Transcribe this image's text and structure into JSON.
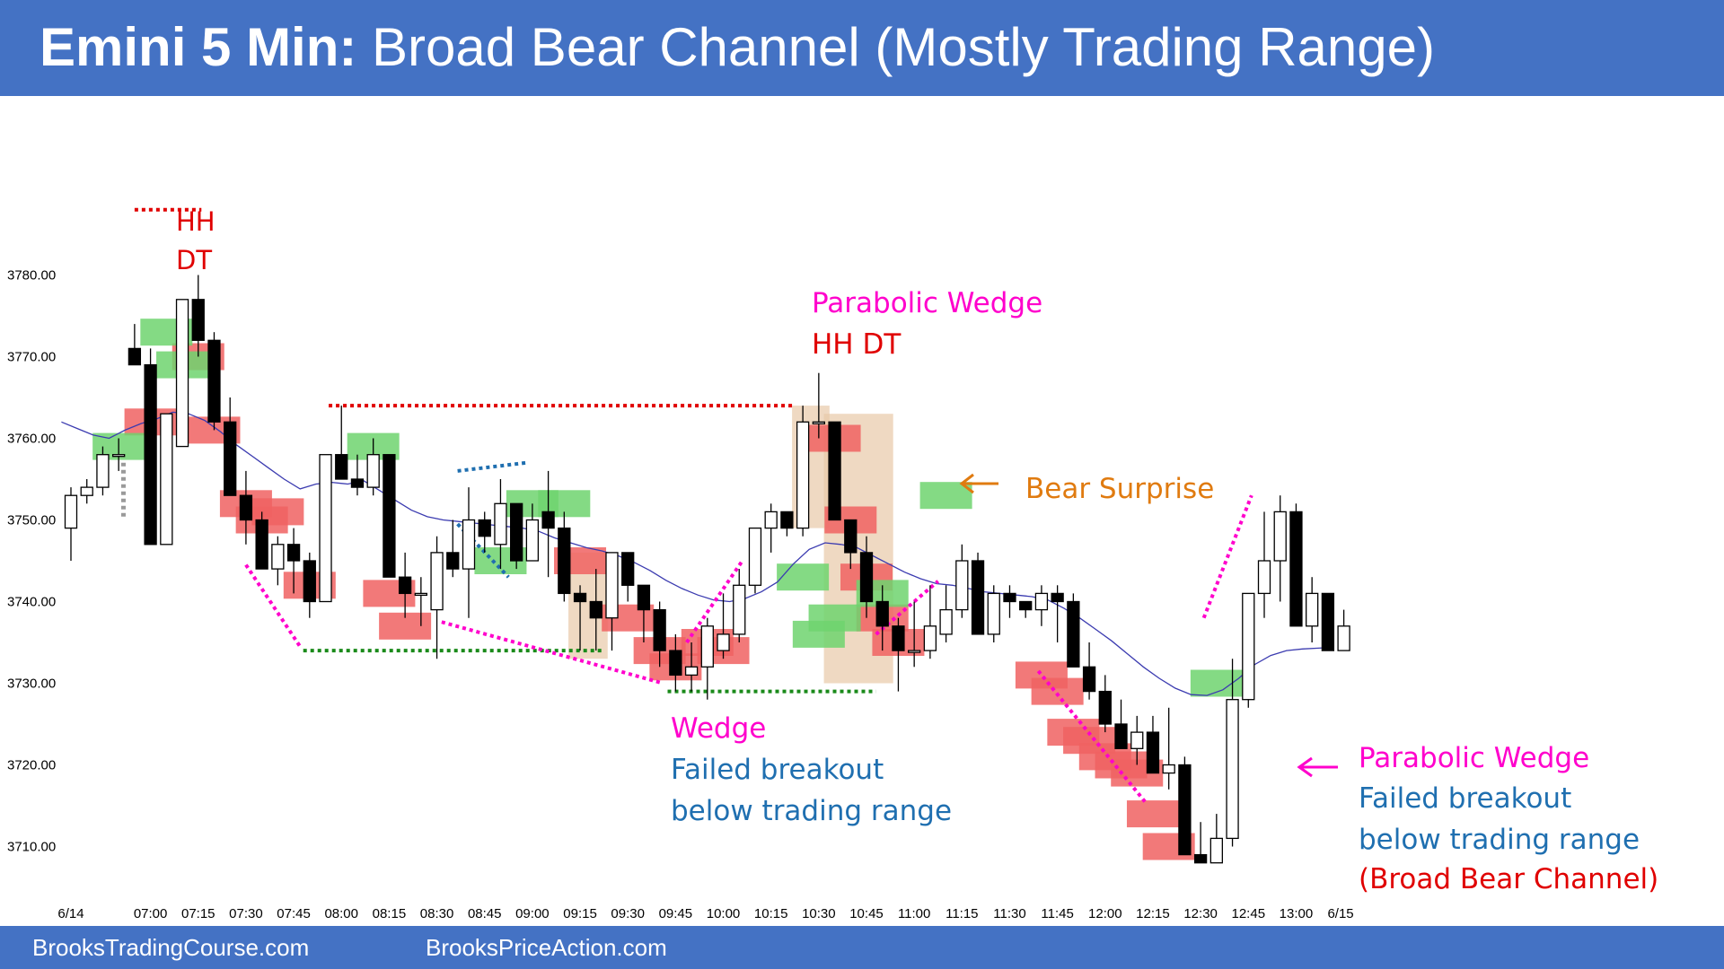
{
  "header": {
    "title_bold": "Emini 5 Min:",
    "title_rest": "Broad Bear Channel (Mostly Trading Range)"
  },
  "footer": {
    "left": "BrooksTradingCourse.com",
    "right": "BrooksPriceAction.com"
  },
  "colors": {
    "header": "#4472c4",
    "bear_bar": "#000000",
    "bull_bar": "#ffffff",
    "ema": "#3b3bb0",
    "buy_box": "#6fd46f",
    "sell_box": "#f06262",
    "magenta": "#ff00cc",
    "red": "#e00000",
    "green_dot": "#1a8a1a",
    "blue_text": "#1f6fb0",
    "orange": "#e07b10",
    "tan": "#e8c9a8"
  },
  "chart_data": {
    "type": "candlestick",
    "title": "",
    "xlabel": "",
    "ylabel": "",
    "ylim": [
      3704,
      3790
    ],
    "y_ticks": [
      "3710.00",
      "3720.00",
      "3730.00",
      "3740.00",
      "3750.00",
      "3760.00",
      "3770.00",
      "3780.00"
    ],
    "x_ticks": [
      {
        "bar": 0,
        "label": "6/14"
      },
      {
        "bar": 5,
        "label": "07:00"
      },
      {
        "bar": 8,
        "label": "07:15"
      },
      {
        "bar": 11,
        "label": "07:30"
      },
      {
        "bar": 14,
        "label": "07:45"
      },
      {
        "bar": 17,
        "label": "08:00"
      },
      {
        "bar": 20,
        "label": "08:15"
      },
      {
        "bar": 23,
        "label": "08:30"
      },
      {
        "bar": 26,
        "label": "08:45"
      },
      {
        "bar": 29,
        "label": "09:00"
      },
      {
        "bar": 32,
        "label": "09:15"
      },
      {
        "bar": 35,
        "label": "09:30"
      },
      {
        "bar": 38,
        "label": "09:45"
      },
      {
        "bar": 41,
        "label": "10:00"
      },
      {
        "bar": 44,
        "label": "10:15"
      },
      {
        "bar": 47,
        "label": "10:30"
      },
      {
        "bar": 50,
        "label": "10:45"
      },
      {
        "bar": 53,
        "label": "11:00"
      },
      {
        "bar": 56,
        "label": "11:15"
      },
      {
        "bar": 59,
        "label": "11:30"
      },
      {
        "bar": 62,
        "label": "11:45"
      },
      {
        "bar": 65,
        "label": "12:00"
      },
      {
        "bar": 68,
        "label": "12:15"
      },
      {
        "bar": 71,
        "label": "12:30"
      },
      {
        "bar": 74,
        "label": "12:45"
      },
      {
        "bar": 77,
        "label": "13:00"
      },
      {
        "bar": 79.8,
        "label": "6/15"
      }
    ],
    "bars": [
      [
        3749,
        3754,
        3745,
        3753
      ],
      [
        3753,
        3755,
        3752,
        3754
      ],
      [
        3754,
        3759,
        3753,
        3758
      ],
      [
        3758,
        3760,
        3756,
        3758
      ],
      [
        3771,
        3774,
        3769,
        3769
      ],
      [
        3769,
        3771,
        3747,
        3747
      ],
      [
        3747,
        3763,
        3747,
        3763
      ],
      [
        3759,
        3777,
        3759,
        3777
      ],
      [
        3777,
        3780,
        3770,
        3772
      ],
      [
        3772,
        3773,
        3761,
        3762
      ],
      [
        3762,
        3765,
        3755,
        3753
      ],
      [
        3753,
        3756,
        3747,
        3750
      ],
      [
        3750,
        3751,
        3744,
        3744
      ],
      [
        3744,
        3748,
        3742,
        3747
      ],
      [
        3747,
        3749,
        3741,
        3745
      ],
      [
        3745,
        3746,
        3738,
        3740
      ],
      [
        3740,
        3758,
        3740,
        3758
      ],
      [
        3758,
        3764,
        3756,
        3755
      ],
      [
        3755,
        3758,
        3753,
        3754
      ],
      [
        3754,
        3760,
        3753,
        3758
      ],
      [
        3758,
        3757,
        3743,
        3743
      ],
      [
        3743,
        3746,
        3738,
        3741
      ],
      [
        3741,
        3743,
        3737,
        3741
      ],
      [
        3739,
        3748,
        3733,
        3746
      ],
      [
        3746,
        3750,
        3743,
        3744
      ],
      [
        3744,
        3754,
        3738,
        3750
      ],
      [
        3750,
        3751,
        3746,
        3748
      ],
      [
        3747,
        3755,
        3744,
        3752
      ],
      [
        3752,
        3752,
        3744,
        3745
      ],
      [
        3745,
        3752,
        3745,
        3750
      ],
      [
        3751,
        3756,
        3743,
        3749
      ],
      [
        3749,
        3751,
        3740,
        3741
      ],
      [
        3741,
        3742,
        3734,
        3740
      ],
      [
        3740,
        3744,
        3734,
        3738
      ],
      [
        3738,
        3744,
        3734,
        3746
      ],
      [
        3746,
        3746,
        3740,
        3742
      ],
      [
        3742,
        3742,
        3735,
        3739
      ],
      [
        3739,
        3740,
        3732,
        3734
      ],
      [
        3734,
        3736,
        3729,
        3731
      ],
      [
        3731,
        3735,
        3729,
        3732
      ],
      [
        3732,
        3738,
        3728,
        3737
      ],
      [
        3734,
        3741,
        3733,
        3736
      ],
      [
        3736,
        3744,
        3735,
        3742
      ],
      [
        3742,
        3749,
        3741,
        3749
      ],
      [
        3749,
        3752,
        3746,
        3751
      ],
      [
        3751,
        3751,
        3748,
        3749
      ],
      [
        3749,
        3764,
        3748,
        3762
      ],
      [
        3762,
        3768,
        3760,
        3762
      ],
      [
        3762,
        3762,
        3750,
        3750
      ],
      [
        3750,
        3750,
        3744,
        3746
      ],
      [
        3746,
        3748,
        3738,
        3740
      ],
      [
        3740,
        3742,
        3734,
        3737
      ],
      [
        3737,
        3738,
        3729,
        3734
      ],
      [
        3734,
        3740,
        3732,
        3734
      ],
      [
        3734,
        3742,
        3733,
        3737
      ],
      [
        3736,
        3742,
        3735,
        3739
      ],
      [
        3739,
        3747,
        3738,
        3745
      ],
      [
        3745,
        3746,
        3736,
        3736
      ],
      [
        3736,
        3742,
        3735,
        3741
      ],
      [
        3741,
        3742,
        3738,
        3740
      ],
      [
        3740,
        3740,
        3738,
        3739
      ],
      [
        3739,
        3742,
        3737,
        3741
      ],
      [
        3741,
        3742,
        3735,
        3740
      ],
      [
        3740,
        3741,
        3735,
        3732
      ],
      [
        3732,
        3735,
        3728,
        3729
      ],
      [
        3729,
        3731,
        3724,
        3725
      ],
      [
        3725,
        3728,
        3723,
        3722
      ],
      [
        3722,
        3726,
        3720,
        3724
      ],
      [
        3724,
        3726,
        3720,
        3719
      ],
      [
        3719,
        3727,
        3717,
        3720
      ],
      [
        3720,
        3721,
        3710,
        3709
      ],
      [
        3709,
        3713,
        3708,
        3708
      ],
      [
        3708,
        3714,
        3708,
        3711
      ],
      [
        3711,
        3733,
        3710,
        3728
      ],
      [
        3728,
        3741,
        3727,
        3741
      ],
      [
        3741,
        3751,
        3738,
        3745
      ],
      [
        3745,
        3753,
        3740,
        3751
      ],
      [
        3751,
        3752,
        3737,
        3737
      ],
      [
        3737,
        3743,
        3735,
        3741
      ],
      [
        3741,
        3740,
        3734,
        3734
      ],
      [
        3734,
        3739,
        3734,
        3737
      ]
    ],
    "ema": [
      3762,
      3761.2,
      3760.4,
      3760,
      3761,
      3761.8,
      3762.4,
      3763.2,
      3763,
      3762.2,
      3760.8,
      3759.2,
      3757.8,
      3756.4,
      3755,
      3753.8,
      3754.4,
      3754.6,
      3754.4,
      3754.8,
      3753.6,
      3752.4,
      3751.2,
      3750.4,
      3750,
      3749.8,
      3749.6,
      3749.4,
      3749.2,
      3749,
      3748.6,
      3747.8,
      3747.2,
      3746.6,
      3746.2,
      3745.6,
      3744.8,
      3743.8,
      3742.6,
      3741.6,
      3740.8,
      3740.2,
      3740,
      3740.4,
      3741.2,
      3742.4,
      3744.6,
      3746.4,
      3747.2,
      3747,
      3746.6,
      3745.6,
      3744.6,
      3743.6,
      3742.8,
      3742.2,
      3742,
      3741.6,
      3741.2,
      3741,
      3740.8,
      3740.6,
      3740.2,
      3739.2,
      3738,
      3736.6,
      3735.2,
      3733.6,
      3732,
      3730.6,
      3729.4,
      3728.6,
      3728.5,
      3729.2,
      3730.6,
      3732.3,
      3733.4,
      3734,
      3734.2,
      3734.3,
      3734.4
    ],
    "buy_boxes": [
      [
        3,
        3759
      ],
      [
        6,
        3773
      ],
      [
        7,
        3769
      ],
      [
        19,
        3759
      ],
      [
        27,
        3745
      ],
      [
        29,
        3752
      ],
      [
        31,
        3752
      ],
      [
        46,
        3743
      ],
      [
        47,
        3736
      ],
      [
        48,
        3738
      ],
      [
        51,
        3741
      ],
      [
        55,
        3753
      ],
      [
        72,
        3730
      ]
    ],
    "sell_boxes": [
      [
        5,
        3762
      ],
      [
        8,
        3770
      ],
      [
        9,
        3761
      ],
      [
        11,
        3752
      ],
      [
        12,
        3750
      ],
      [
        13,
        3751
      ],
      [
        15,
        3742
      ],
      [
        20,
        3741
      ],
      [
        21,
        3737
      ],
      [
        32,
        3745
      ],
      [
        35,
        3738
      ],
      [
        37,
        3734
      ],
      [
        38,
        3732
      ],
      [
        40,
        3735
      ],
      [
        41,
        3734
      ],
      [
        48,
        3760
      ],
      [
        49,
        3750
      ],
      [
        50,
        3743
      ],
      [
        51,
        3738
      ],
      [
        52,
        3735
      ],
      [
        61,
        3731
      ],
      [
        62,
        3729
      ],
      [
        63,
        3724
      ],
      [
        64,
        3723
      ],
      [
        65,
        3721
      ],
      [
        66,
        3720
      ],
      [
        67,
        3719
      ],
      [
        68,
        3714
      ],
      [
        69,
        3710
      ]
    ],
    "annotations": [
      {
        "text": "HH",
        "color": "red"
      },
      {
        "text": "DT",
        "color": "red"
      },
      {
        "text": "Parabolic Wedge",
        "color": "magenta"
      },
      {
        "text": "HH DT",
        "color": "red"
      },
      {
        "text": "Bear Surprise",
        "color": "orange"
      },
      {
        "text": "Wedge",
        "color": "magenta"
      },
      {
        "text": "Failed breakout",
        "color": "blue"
      },
      {
        "text": "below trading range",
        "color": "blue"
      },
      {
        "text": "Parabolic Wedge",
        "color": "magenta"
      },
      {
        "text": "Failed breakout",
        "color": "blue"
      },
      {
        "text": "below trading range",
        "color": "blue"
      },
      {
        "text": "(Broad Bear Channel)",
        "color": "red"
      }
    ]
  }
}
